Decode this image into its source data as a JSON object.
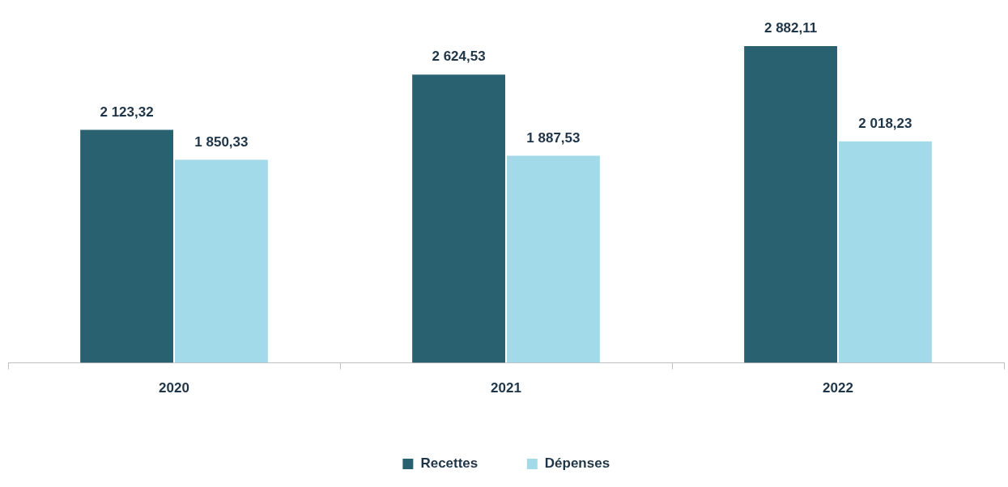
{
  "chart_data": {
    "type": "bar",
    "categories": [
      "2020",
      "2021",
      "2022"
    ],
    "series": [
      {
        "name": "Recettes",
        "color": "#2a6170",
        "values": [
          2123.32,
          2624.53,
          2882.11
        ],
        "value_labels": [
          "2 123,32",
          "2 624,53",
          "2 882,11"
        ]
      },
      {
        "name": "Dépenses",
        "color": "#a2dae9",
        "values": [
          1850.33,
          1887.53,
          2018.23
        ],
        "value_labels": [
          "1 850,33",
          "1 887,53",
          "2 018,23"
        ]
      }
    ],
    "legend": "bottom"
  }
}
